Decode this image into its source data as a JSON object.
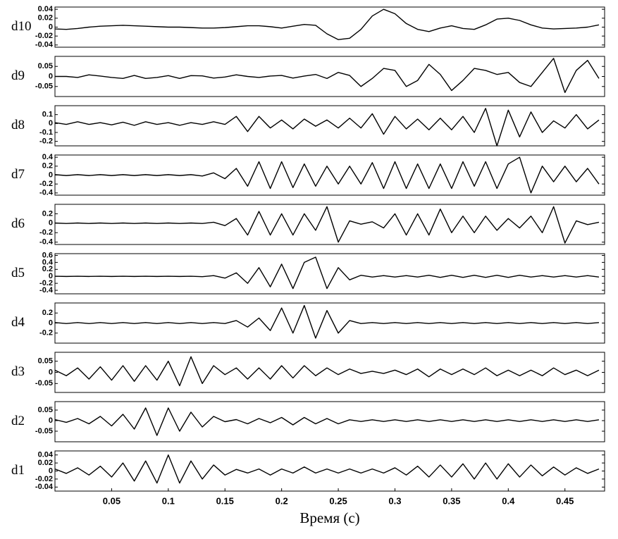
{
  "chart_data": [
    {
      "type": "line",
      "ylabel": "d10",
      "xlim": [
        0,
        0.485
      ],
      "ylim": [
        -0.045,
        0.045
      ],
      "yticks": [
        0.04,
        0.02,
        0,
        -0.02,
        -0.04
      ],
      "x": [
        0,
        0.01,
        0.02,
        0.03,
        0.04,
        0.05,
        0.06,
        0.07,
        0.08,
        0.09,
        0.1,
        0.11,
        0.12,
        0.13,
        0.14,
        0.15,
        0.16,
        0.17,
        0.18,
        0.19,
        0.2,
        0.21,
        0.22,
        0.23,
        0.24,
        0.25,
        0.26,
        0.27,
        0.28,
        0.29,
        0.3,
        0.31,
        0.32,
        0.33,
        0.34,
        0.35,
        0.36,
        0.37,
        0.38,
        0.39,
        0.4,
        0.41,
        0.42,
        0.43,
        0.44,
        0.45,
        0.46,
        0.47,
        0.48
      ],
      "series": [
        {
          "color": "#000000",
          "values": [
            -0.004,
            -0.005,
            -0.003,
            0,
            0.002,
            0.003,
            0.004,
            0.003,
            0.002,
            0.001,
            0,
            0,
            -0.001,
            -0.002,
            -0.002,
            -0.001,
            0.001,
            0.003,
            0.003,
            0.001,
            -0.002,
            0.002,
            0.006,
            0.004,
            -0.015,
            -0.028,
            -0.025,
            -0.005,
            0.025,
            0.04,
            0.03,
            0.008,
            -0.005,
            -0.01,
            -0.002,
            0.003,
            -0.003,
            -0.005,
            0.005,
            0.018,
            0.02,
            0.015,
            0.005,
            -0.002,
            -0.004,
            -0.003,
            -0.002,
            0,
            0.005
          ]
        }
      ]
    },
    {
      "type": "line",
      "ylabel": "d9",
      "xlim": [
        0,
        0.485
      ],
      "ylim": [
        -0.1,
        0.1
      ],
      "yticks": [
        0.05,
        0,
        -0.05
      ],
      "x": [
        0,
        0.01,
        0.02,
        0.03,
        0.04,
        0.05,
        0.06,
        0.07,
        0.08,
        0.09,
        0.1,
        0.11,
        0.12,
        0.13,
        0.14,
        0.15,
        0.16,
        0.17,
        0.18,
        0.19,
        0.2,
        0.21,
        0.22,
        0.23,
        0.24,
        0.25,
        0.26,
        0.27,
        0.28,
        0.29,
        0.3,
        0.31,
        0.32,
        0.33,
        0.34,
        0.35,
        0.36,
        0.37,
        0.38,
        0.39,
        0.4,
        0.41,
        0.42,
        0.43,
        0.44,
        0.45,
        0.46,
        0.47,
        0.48
      ],
      "series": [
        {
          "color": "#000000",
          "values": [
            0,
            0,
            -0.005,
            0.008,
            0.002,
            -0.005,
            -0.01,
            0.005,
            -0.01,
            -0.005,
            0.004,
            -0.01,
            0.004,
            0.003,
            -0.008,
            -0.003,
            0.008,
            0,
            -0.005,
            0.002,
            0.005,
            -0.008,
            0.002,
            0.01,
            -0.01,
            0.02,
            0.005,
            -0.05,
            -0.01,
            0.04,
            0.03,
            -0.05,
            -0.02,
            0.06,
            0.01,
            -0.07,
            -0.02,
            0.04,
            0.03,
            0.01,
            0.02,
            -0.03,
            -0.05,
            0.02,
            0.09,
            -0.08,
            0.03,
            0.08,
            -0.01
          ]
        }
      ]
    },
    {
      "type": "line",
      "ylabel": "d8",
      "xlim": [
        0,
        0.485
      ],
      "ylim": [
        -0.25,
        0.2
      ],
      "yticks": [
        0.1,
        0,
        -0.1,
        -0.2
      ],
      "x": [
        0,
        0.01,
        0.02,
        0.03,
        0.04,
        0.05,
        0.06,
        0.07,
        0.08,
        0.09,
        0.1,
        0.11,
        0.12,
        0.13,
        0.14,
        0.15,
        0.16,
        0.17,
        0.18,
        0.19,
        0.2,
        0.21,
        0.22,
        0.23,
        0.24,
        0.25,
        0.26,
        0.27,
        0.28,
        0.29,
        0.3,
        0.31,
        0.32,
        0.33,
        0.34,
        0.35,
        0.36,
        0.37,
        0.38,
        0.39,
        0.4,
        0.41,
        0.42,
        0.43,
        0.44,
        0.45,
        0.46,
        0.47,
        0.48
      ],
      "series": [
        {
          "color": "#000000",
          "values": [
            0.01,
            -0.01,
            0.02,
            -0.01,
            0.01,
            -0.015,
            0.015,
            -0.02,
            0.02,
            -0.01,
            0.01,
            -0.02,
            0.01,
            -0.01,
            0.02,
            -0.01,
            0.08,
            -0.09,
            0.08,
            -0.05,
            0.04,
            -0.06,
            0.05,
            -0.03,
            0.04,
            -0.05,
            0.06,
            -0.05,
            0.11,
            -0.12,
            0.08,
            -0.06,
            0.05,
            -0.07,
            0.06,
            -0.07,
            0.08,
            -0.1,
            0.17,
            -0.25,
            0.15,
            -0.15,
            0.13,
            -0.1,
            0.03,
            -0.05,
            0.1,
            -0.06,
            0.04
          ]
        }
      ]
    },
    {
      "type": "line",
      "ylabel": "d7",
      "xlim": [
        0,
        0.485
      ],
      "ylim": [
        -0.45,
        0.45
      ],
      "yticks": [
        0.4,
        0.2,
        0,
        -0.2,
        -0.4
      ],
      "x": [
        0,
        0.01,
        0.02,
        0.03,
        0.04,
        0.05,
        0.06,
        0.07,
        0.08,
        0.09,
        0.1,
        0.11,
        0.12,
        0.13,
        0.14,
        0.15,
        0.16,
        0.17,
        0.18,
        0.19,
        0.2,
        0.21,
        0.22,
        0.23,
        0.24,
        0.25,
        0.26,
        0.27,
        0.28,
        0.29,
        0.3,
        0.31,
        0.32,
        0.33,
        0.34,
        0.35,
        0.36,
        0.37,
        0.38,
        0.39,
        0.4,
        0.41,
        0.42,
        0.43,
        0.44,
        0.45,
        0.46,
        0.47,
        0.48
      ],
      "series": [
        {
          "color": "#000000",
          "values": [
            0.01,
            -0.01,
            0.01,
            -0.01,
            0.01,
            -0.01,
            0.01,
            -0.01,
            0.01,
            -0.01,
            0.01,
            -0.01,
            0.01,
            -0.02,
            0.05,
            -0.08,
            0.15,
            -0.25,
            0.3,
            -0.3,
            0.3,
            -0.28,
            0.25,
            -0.25,
            0.2,
            -0.2,
            0.2,
            -0.2,
            0.28,
            -0.3,
            0.3,
            -0.3,
            0.25,
            -0.3,
            0.25,
            -0.3,
            0.3,
            -0.25,
            0.3,
            -0.3,
            0.25,
            0.4,
            -0.4,
            0.2,
            -0.15,
            0.2,
            -0.15,
            0.15,
            -0.2
          ]
        }
      ]
    },
    {
      "type": "line",
      "ylabel": "d6",
      "xlim": [
        0,
        0.485
      ],
      "ylim": [
        -0.45,
        0.4
      ],
      "yticks": [
        0.2,
        0,
        -0.2,
        -0.4
      ],
      "x": [
        0,
        0.01,
        0.02,
        0.03,
        0.04,
        0.05,
        0.06,
        0.07,
        0.08,
        0.09,
        0.1,
        0.11,
        0.12,
        0.13,
        0.14,
        0.15,
        0.16,
        0.17,
        0.18,
        0.19,
        0.2,
        0.21,
        0.22,
        0.23,
        0.24,
        0.25,
        0.26,
        0.27,
        0.28,
        0.29,
        0.3,
        0.31,
        0.32,
        0.33,
        0.34,
        0.35,
        0.36,
        0.37,
        0.38,
        0.39,
        0.4,
        0.41,
        0.42,
        0.43,
        0.44,
        0.45,
        0.46,
        0.47,
        0.48
      ],
      "series": [
        {
          "color": "#000000",
          "values": [
            0.005,
            -0.005,
            0.005,
            -0.005,
            0.005,
            -0.005,
            0.005,
            -0.005,
            0.005,
            -0.005,
            0.005,
            -0.005,
            0.005,
            -0.005,
            0.02,
            -0.05,
            0.1,
            -0.25,
            0.25,
            -0.25,
            0.2,
            -0.25,
            0.2,
            -0.15,
            0.35,
            -0.4,
            0.05,
            -0.02,
            0.03,
            -0.1,
            0.2,
            -0.25,
            0.2,
            -0.25,
            0.3,
            -0.2,
            0.15,
            -0.2,
            0.15,
            -0.15,
            0.1,
            -0.1,
            0.15,
            -0.2,
            0.35,
            -0.42,
            0.05,
            -0.03,
            0.02
          ]
        }
      ]
    },
    {
      "type": "line",
      "ylabel": "d5",
      "xlim": [
        0,
        0.485
      ],
      "ylim": [
        -0.5,
        0.65
      ],
      "yticks": [
        0.6,
        0.4,
        0.2,
        0,
        -0.2,
        -0.4
      ],
      "x": [
        0,
        0.01,
        0.02,
        0.03,
        0.04,
        0.05,
        0.06,
        0.07,
        0.08,
        0.09,
        0.1,
        0.11,
        0.12,
        0.13,
        0.14,
        0.15,
        0.16,
        0.17,
        0.18,
        0.19,
        0.2,
        0.21,
        0.22,
        0.23,
        0.24,
        0.25,
        0.26,
        0.27,
        0.28,
        0.29,
        0.3,
        0.31,
        0.32,
        0.33,
        0.34,
        0.35,
        0.36,
        0.37,
        0.38,
        0.39,
        0.4,
        0.41,
        0.42,
        0.43,
        0.44,
        0.45,
        0.46,
        0.47,
        0.48
      ],
      "series": [
        {
          "color": "#000000",
          "values": [
            0.003,
            -0.003,
            0.003,
            -0.003,
            0.003,
            -0.003,
            0.003,
            -0.003,
            0.003,
            -0.003,
            0.003,
            -0.003,
            0.003,
            -0.01,
            0.02,
            -0.05,
            0.1,
            -0.2,
            0.25,
            -0.3,
            0.35,
            -0.35,
            0.4,
            0.55,
            -0.35,
            0.25,
            -0.1,
            0.03,
            -0.02,
            0.02,
            -0.02,
            0.02,
            -0.02,
            0.03,
            -0.03,
            0.03,
            -0.03,
            0.03,
            -0.03,
            0.03,
            -0.03,
            0.03,
            -0.02,
            0.02,
            -0.02,
            0.02,
            -0.02,
            0.02,
            -0.02
          ]
        }
      ]
    },
    {
      "type": "line",
      "ylabel": "d4",
      "xlim": [
        0,
        0.485
      ],
      "ylim": [
        -0.4,
        0.4
      ],
      "yticks": [
        0.2,
        0,
        -0.2
      ],
      "x": [
        0,
        0.01,
        0.02,
        0.03,
        0.04,
        0.05,
        0.06,
        0.07,
        0.08,
        0.09,
        0.1,
        0.11,
        0.12,
        0.13,
        0.14,
        0.15,
        0.16,
        0.17,
        0.18,
        0.19,
        0.2,
        0.21,
        0.22,
        0.23,
        0.24,
        0.25,
        0.26,
        0.27,
        0.28,
        0.29,
        0.3,
        0.31,
        0.32,
        0.33,
        0.34,
        0.35,
        0.36,
        0.37,
        0.38,
        0.39,
        0.4,
        0.41,
        0.42,
        0.43,
        0.44,
        0.45,
        0.46,
        0.47,
        0.48
      ],
      "series": [
        {
          "color": "#000000",
          "values": [
            0.01,
            -0.01,
            0.01,
            -0.01,
            0.01,
            -0.01,
            0.01,
            -0.01,
            0.01,
            -0.01,
            0.01,
            -0.01,
            0.01,
            -0.01,
            0.01,
            -0.01,
            0.05,
            -0.08,
            0.1,
            -0.15,
            0.3,
            -0.2,
            0.35,
            -0.3,
            0.25,
            -0.2,
            0.05,
            -0.01,
            0.01,
            -0.01,
            0.01,
            -0.01,
            0.01,
            -0.01,
            0.01,
            -0.01,
            0.01,
            -0.01,
            0.01,
            -0.01,
            0.01,
            -0.01,
            0.01,
            -0.01,
            0.01,
            -0.01,
            0.01,
            -0.01,
            0.01
          ]
        }
      ]
    },
    {
      "type": "line",
      "ylabel": "d3",
      "xlim": [
        0,
        0.485
      ],
      "ylim": [
        -0.09,
        0.09
      ],
      "yticks": [
        0.05,
        0,
        -0.05
      ],
      "x": [
        0,
        0.01,
        0.02,
        0.03,
        0.04,
        0.05,
        0.06,
        0.07,
        0.08,
        0.09,
        0.1,
        0.11,
        0.12,
        0.13,
        0.14,
        0.15,
        0.16,
        0.17,
        0.18,
        0.19,
        0.2,
        0.21,
        0.22,
        0.23,
        0.24,
        0.25,
        0.26,
        0.27,
        0.28,
        0.29,
        0.3,
        0.31,
        0.32,
        0.33,
        0.34,
        0.35,
        0.36,
        0.37,
        0.38,
        0.39,
        0.4,
        0.41,
        0.42,
        0.43,
        0.44,
        0.45,
        0.46,
        0.47,
        0.48
      ],
      "series": [
        {
          "color": "#000000",
          "values": [
            0.01,
            -0.015,
            0.02,
            -0.03,
            0.025,
            -0.035,
            0.03,
            -0.04,
            0.03,
            -0.035,
            0.05,
            -0.06,
            0.07,
            -0.05,
            0.03,
            -0.01,
            0.02,
            -0.03,
            0.02,
            -0.03,
            0.03,
            -0.025,
            0.03,
            -0.015,
            0.02,
            -0.01,
            0.015,
            -0.005,
            0.005,
            -0.005,
            0.01,
            -0.01,
            0.015,
            -0.02,
            0.015,
            -0.01,
            0.015,
            -0.01,
            0.02,
            -0.015,
            0.01,
            -0.015,
            0.01,
            -0.015,
            0.02,
            -0.01,
            0.01,
            -0.015,
            0.01
          ]
        }
      ]
    },
    {
      "type": "line",
      "ylabel": "d2",
      "xlim": [
        0,
        0.485
      ],
      "ylim": [
        -0.1,
        0.09
      ],
      "yticks": [
        0.05,
        0,
        -0.05
      ],
      "x": [
        0,
        0.01,
        0.02,
        0.03,
        0.04,
        0.05,
        0.06,
        0.07,
        0.08,
        0.09,
        0.1,
        0.11,
        0.12,
        0.13,
        0.14,
        0.15,
        0.16,
        0.17,
        0.18,
        0.19,
        0.2,
        0.21,
        0.22,
        0.23,
        0.24,
        0.25,
        0.26,
        0.27,
        0.28,
        0.29,
        0.3,
        0.31,
        0.32,
        0.33,
        0.34,
        0.35,
        0.36,
        0.37,
        0.38,
        0.39,
        0.4,
        0.41,
        0.42,
        0.43,
        0.44,
        0.45,
        0.46,
        0.47,
        0.48
      ],
      "series": [
        {
          "color": "#000000",
          "values": [
            0.005,
            -0.008,
            0.01,
            -0.015,
            0.02,
            -0.025,
            0.03,
            -0.04,
            0.06,
            -0.07,
            0.06,
            -0.05,
            0.04,
            -0.03,
            0.02,
            -0.005,
            0.005,
            -0.015,
            0.01,
            -0.01,
            0.015,
            -0.02,
            0.015,
            -0.015,
            0.01,
            -0.015,
            0.004,
            -0.004,
            0.004,
            -0.004,
            0.004,
            -0.004,
            0.004,
            -0.004,
            0.004,
            -0.004,
            0.004,
            -0.004,
            0.004,
            -0.004,
            0.004,
            -0.004,
            0.004,
            -0.004,
            0.004,
            -0.004,
            0.004,
            -0.004,
            0.004
          ]
        }
      ]
    },
    {
      "type": "line",
      "ylabel": "d1",
      "xlabel": "Время (с)",
      "xlim": [
        0,
        0.485
      ],
      "ylim": [
        -0.05,
        0.05
      ],
      "yticks": [
        0.04,
        0.02,
        0,
        -0.02,
        -0.04
      ],
      "xticks": [
        0.05,
        0.1,
        0.15,
        0.2,
        0.25,
        0.3,
        0.35,
        0.4,
        0.45
      ],
      "x": [
        0,
        0.01,
        0.02,
        0.03,
        0.04,
        0.05,
        0.06,
        0.07,
        0.08,
        0.09,
        0.1,
        0.11,
        0.12,
        0.13,
        0.14,
        0.15,
        0.16,
        0.17,
        0.18,
        0.19,
        0.2,
        0.21,
        0.22,
        0.23,
        0.24,
        0.25,
        0.26,
        0.27,
        0.28,
        0.29,
        0.3,
        0.31,
        0.32,
        0.33,
        0.34,
        0.35,
        0.36,
        0.37,
        0.38,
        0.39,
        0.4,
        0.41,
        0.42,
        0.43,
        0.44,
        0.45,
        0.46,
        0.47,
        0.48
      ],
      "series": [
        {
          "color": "#000000",
          "values": [
            0.005,
            -0.006,
            0.008,
            -0.01,
            0.012,
            -0.015,
            0.02,
            -0.025,
            0.025,
            -0.03,
            0.04,
            -0.03,
            0.025,
            -0.02,
            0.015,
            -0.01,
            0.004,
            -0.005,
            0.005,
            -0.01,
            0.005,
            -0.005,
            0.01,
            -0.005,
            0.005,
            -0.005,
            0.005,
            -0.005,
            0.005,
            -0.005,
            0.008,
            -0.01,
            0.012,
            -0.015,
            0.015,
            -0.015,
            0.018,
            -0.02,
            0.02,
            -0.02,
            0.018,
            -0.015,
            0.015,
            -0.012,
            0.01,
            -0.01,
            0.008,
            -0.006,
            0.005
          ]
        }
      ]
    }
  ]
}
